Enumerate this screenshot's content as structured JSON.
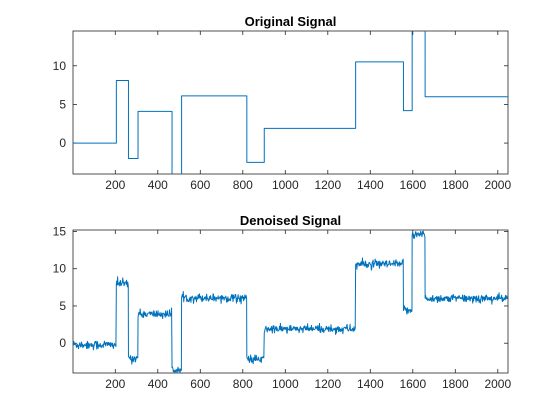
{
  "chart_data": [
    {
      "type": "line",
      "title": "Original Signal",
      "xlabel": "",
      "ylabel": "",
      "xlim": [
        1,
        2048
      ],
      "ylim": [
        -4,
        14.5
      ],
      "xticks": [
        200,
        400,
        600,
        800,
        1000,
        1200,
        1400,
        1600,
        1800,
        2000
      ],
      "yticks": [
        0,
        5,
        10
      ],
      "grid": false,
      "line_color": "#0072BD",
      "series": [
        {
          "style": "step",
          "segments": [
            {
              "x0": 1,
              "x1": 205,
              "y": 0
            },
            {
              "x0": 205,
              "x1": 262,
              "y": 8.1
            },
            {
              "x0": 262,
              "x1": 307,
              "y": -2
            },
            {
              "x0": 307,
              "x1": 467,
              "y": 4.1
            },
            {
              "x0": 467,
              "x1": 512,
              "y": -4.5
            },
            {
              "x0": 512,
              "x1": 819,
              "y": 6.1
            },
            {
              "x0": 819,
              "x1": 901,
              "y": -2.5
            },
            {
              "x0": 901,
              "x1": 1331,
              "y": 1.9
            },
            {
              "x0": 1331,
              "x1": 1556,
              "y": 10.5
            },
            {
              "x0": 1556,
              "x1": 1597,
              "y": 4.2
            },
            {
              "x0": 1597,
              "x1": 1658,
              "y": 16
            },
            {
              "x0": 1658,
              "x1": 2048,
              "y": 6
            }
          ]
        }
      ]
    },
    {
      "type": "line",
      "title": "Denoised Signal",
      "xlabel": "",
      "ylabel": "",
      "xlim": [
        1,
        2048
      ],
      "ylim": [
        -4,
        15.2
      ],
      "xticks": [
        200,
        400,
        600,
        800,
        1000,
        1200,
        1400,
        1600,
        1800,
        2000
      ],
      "yticks": [
        0,
        5,
        10,
        15
      ],
      "grid": false,
      "line_color": "#0072BD",
      "noise_sd": 0.35,
      "series": [
        {
          "style": "noisy-step",
          "segments": [
            {
              "x0": 1,
              "x1": 205,
              "y": -0.2
            },
            {
              "x0": 205,
              "x1": 262,
              "y": 8.0
            },
            {
              "x0": 262,
              "x1": 307,
              "y": -2.0
            },
            {
              "x0": 307,
              "x1": 467,
              "y": 3.9
            },
            {
              "x0": 467,
              "x1": 512,
              "y": -3.6
            },
            {
              "x0": 512,
              "x1": 819,
              "y": 6.1
            },
            {
              "x0": 819,
              "x1": 901,
              "y": -2.2
            },
            {
              "x0": 901,
              "x1": 1331,
              "y": 1.9
            },
            {
              "x0": 1331,
              "x1": 1556,
              "y": 10.6
            },
            {
              "x0": 1556,
              "x1": 1597,
              "y": 4.5
            },
            {
              "x0": 1597,
              "x1": 1658,
              "y": 14.6
            },
            {
              "x0": 1658,
              "x1": 2048,
              "y": 6.0
            }
          ]
        }
      ]
    }
  ]
}
